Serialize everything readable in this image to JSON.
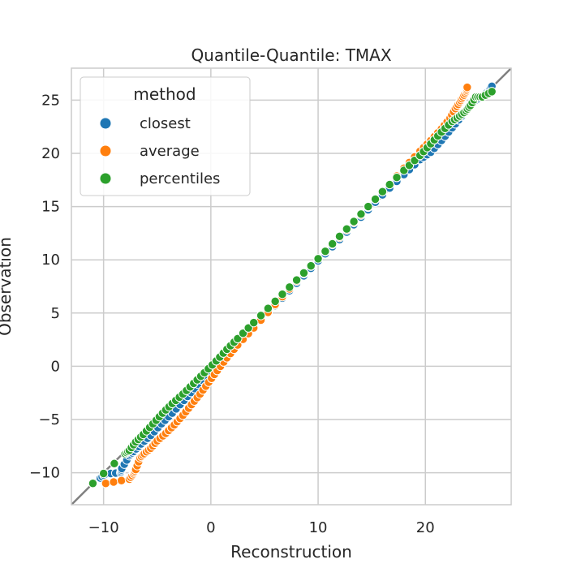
{
  "chart_data": {
    "type": "scatter",
    "title": "Quantile-Quantile: TMAX",
    "xlabel": "Reconstruction",
    "ylabel": "Observation",
    "xlim": [
      -13,
      28
    ],
    "ylim": [
      -13,
      28
    ],
    "x_ticks": [
      -10,
      0,
      10,
      20
    ],
    "x_tick_labels": [
      "−10",
      "0",
      "10",
      "20"
    ],
    "y_ticks": [
      -10,
      -5,
      0,
      5,
      10,
      15,
      20,
      25
    ],
    "y_tick_labels": [
      "−10",
      "−5",
      "0",
      "5",
      "10",
      "15",
      "20",
      "25"
    ],
    "grid": true,
    "reference_line": {
      "from": [
        -13,
        -13
      ],
      "to": [
        28,
        28
      ],
      "color": "#808080"
    },
    "legend": {
      "title": "method",
      "placement": "top-left",
      "entries": [
        {
          "label": "closest",
          "color": "#1f77b4"
        },
        {
          "label": "average",
          "color": "#ff7f0e"
        },
        {
          "label": "percentiles",
          "color": "#2ca02c"
        }
      ]
    },
    "series": [
      {
        "name": "closest",
        "color": "#1f77b4",
        "points": [
          [
            -10.3,
            -10.5
          ],
          [
            -9.8,
            -10.1
          ],
          [
            -8.4,
            -10.0
          ],
          [
            -8.3,
            -9.6
          ],
          [
            -7.6,
            -8.4
          ],
          [
            -7.2,
            -8.0
          ],
          [
            -6.5,
            -7.3
          ],
          [
            -5.6,
            -6.5
          ],
          [
            -4.6,
            -5.4
          ],
          [
            -3.6,
            -4.4
          ],
          [
            -2.5,
            -3.2
          ],
          [
            -1.5,
            -2.1
          ],
          [
            -0.5,
            -0.9
          ],
          [
            0.5,
            0.1
          ],
          [
            1.5,
            1.1
          ],
          [
            2.5,
            2.2
          ],
          [
            4.0,
            3.7
          ],
          [
            6.0,
            5.7
          ],
          [
            8.0,
            7.8
          ],
          [
            10.0,
            9.9
          ],
          [
            12.0,
            11.9
          ],
          [
            14.0,
            14.0
          ],
          [
            16.0,
            16.1
          ],
          [
            18.0,
            18.0
          ],
          [
            19.5,
            19.4
          ],
          [
            20.5,
            20.1
          ],
          [
            21.5,
            21.2
          ],
          [
            22.5,
            22.4
          ],
          [
            23.4,
            23.5
          ],
          [
            24.0,
            24.3
          ],
          [
            24.7,
            25.0
          ],
          [
            25.4,
            25.4
          ],
          [
            25.9,
            25.9
          ],
          [
            26.2,
            26.3
          ]
        ]
      },
      {
        "name": "average",
        "color": "#ff7f0e",
        "points": [
          [
            -9.8,
            -11.0
          ],
          [
            -7.6,
            -10.6
          ],
          [
            -7.2,
            -10.1
          ],
          [
            -7.0,
            -9.7
          ],
          [
            -6.6,
            -8.6
          ],
          [
            -6.2,
            -8.2
          ],
          [
            -5.6,
            -7.7
          ],
          [
            -5.0,
            -7.0
          ],
          [
            -4.2,
            -6.3
          ],
          [
            -3.4,
            -5.5
          ],
          [
            -2.6,
            -4.6
          ],
          [
            -1.8,
            -3.6
          ],
          [
            -1.0,
            -2.6
          ],
          [
            -0.2,
            -1.5
          ],
          [
            0.6,
            -0.4
          ],
          [
            1.5,
            0.8
          ],
          [
            2.5,
            2.0
          ],
          [
            4.0,
            3.6
          ],
          [
            6.0,
            5.8
          ],
          [
            8.0,
            8.0
          ],
          [
            10.0,
            10.1
          ],
          [
            12.0,
            12.1
          ],
          [
            14.0,
            14.2
          ],
          [
            16.0,
            16.4
          ],
          [
            18.0,
            18.6
          ],
          [
            19.5,
            20.2
          ],
          [
            20.5,
            21.2
          ],
          [
            21.5,
            22.3
          ],
          [
            22.3,
            23.3
          ],
          [
            22.8,
            24.2
          ],
          [
            23.2,
            24.8
          ],
          [
            23.5,
            25.3
          ],
          [
            23.8,
            25.8
          ],
          [
            23.9,
            26.2
          ]
        ]
      },
      {
        "name": "percentiles",
        "color": "#2ca02c",
        "points": [
          [
            -11.0,
            -11.0
          ],
          [
            -8.0,
            -8.2
          ],
          [
            -7.6,
            -7.9
          ],
          [
            -7.0,
            -7.1
          ],
          [
            -6.3,
            -6.4
          ],
          [
            -5.4,
            -5.4
          ],
          [
            -4.5,
            -4.4
          ],
          [
            -3.6,
            -3.5
          ],
          [
            -2.6,
            -2.6
          ],
          [
            -1.6,
            -1.6
          ],
          [
            -0.6,
            -0.6
          ],
          [
            0.5,
            0.5
          ],
          [
            1.5,
            1.6
          ],
          [
            2.5,
            2.6
          ],
          [
            4.0,
            4.1
          ],
          [
            6.0,
            6.1
          ],
          [
            8.0,
            8.1
          ],
          [
            10.0,
            10.1
          ],
          [
            12.0,
            12.2
          ],
          [
            14.0,
            14.3
          ],
          [
            16.0,
            16.4
          ],
          [
            18.0,
            18.4
          ],
          [
            19.5,
            19.8
          ],
          [
            20.5,
            20.9
          ],
          [
            21.5,
            22.0
          ],
          [
            22.5,
            23.0
          ],
          [
            23.2,
            23.5
          ],
          [
            23.8,
            24.0
          ],
          [
            24.2,
            24.5
          ],
          [
            24.7,
            25.3
          ],
          [
            25.3,
            25.3
          ],
          [
            26.2,
            25.8
          ]
        ]
      }
    ]
  }
}
